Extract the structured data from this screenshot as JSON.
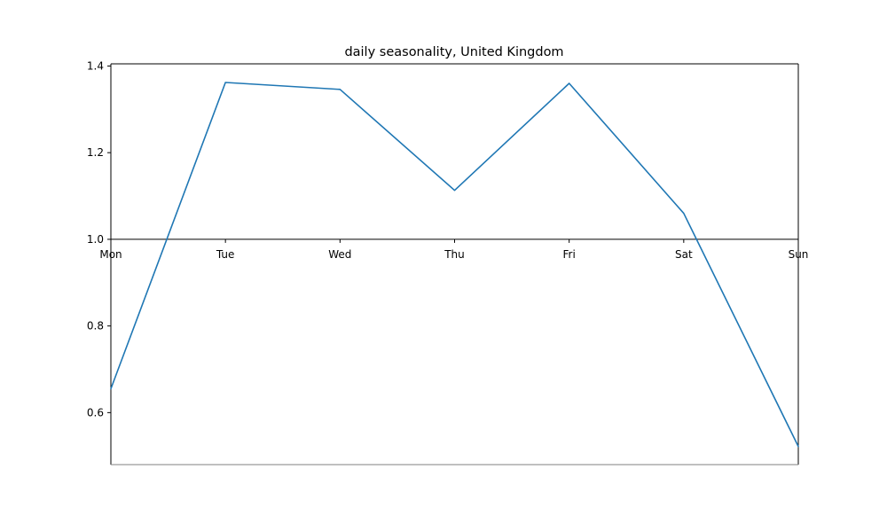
{
  "chart_data": {
    "type": "line",
    "title": "daily seasonality, United Kingdom",
    "xlabel": "",
    "ylabel": "",
    "categories": [
      "Mon",
      "Tue",
      "Wed",
      "Thu",
      "Fri",
      "Sat",
      "Sun"
    ],
    "series": [
      {
        "values": [
          0.655,
          1.362,
          1.346,
          1.113,
          1.36,
          1.06,
          0.522
        ],
        "color": "#1f77b4"
      }
    ],
    "ylim": [
      0.48,
      1.405
    ],
    "yticks": [
      0.6,
      0.8,
      1.0,
      1.2,
      1.4
    ],
    "ytick_labels": [
      "0.6",
      "0.8",
      "1.0",
      "1.2",
      "1.4"
    ],
    "baseline": 1.0,
    "grid": false,
    "legend": "none",
    "spines": {
      "top": true,
      "left": true,
      "right": true,
      "bottom": true,
      "bottom_color": "#808080"
    }
  }
}
